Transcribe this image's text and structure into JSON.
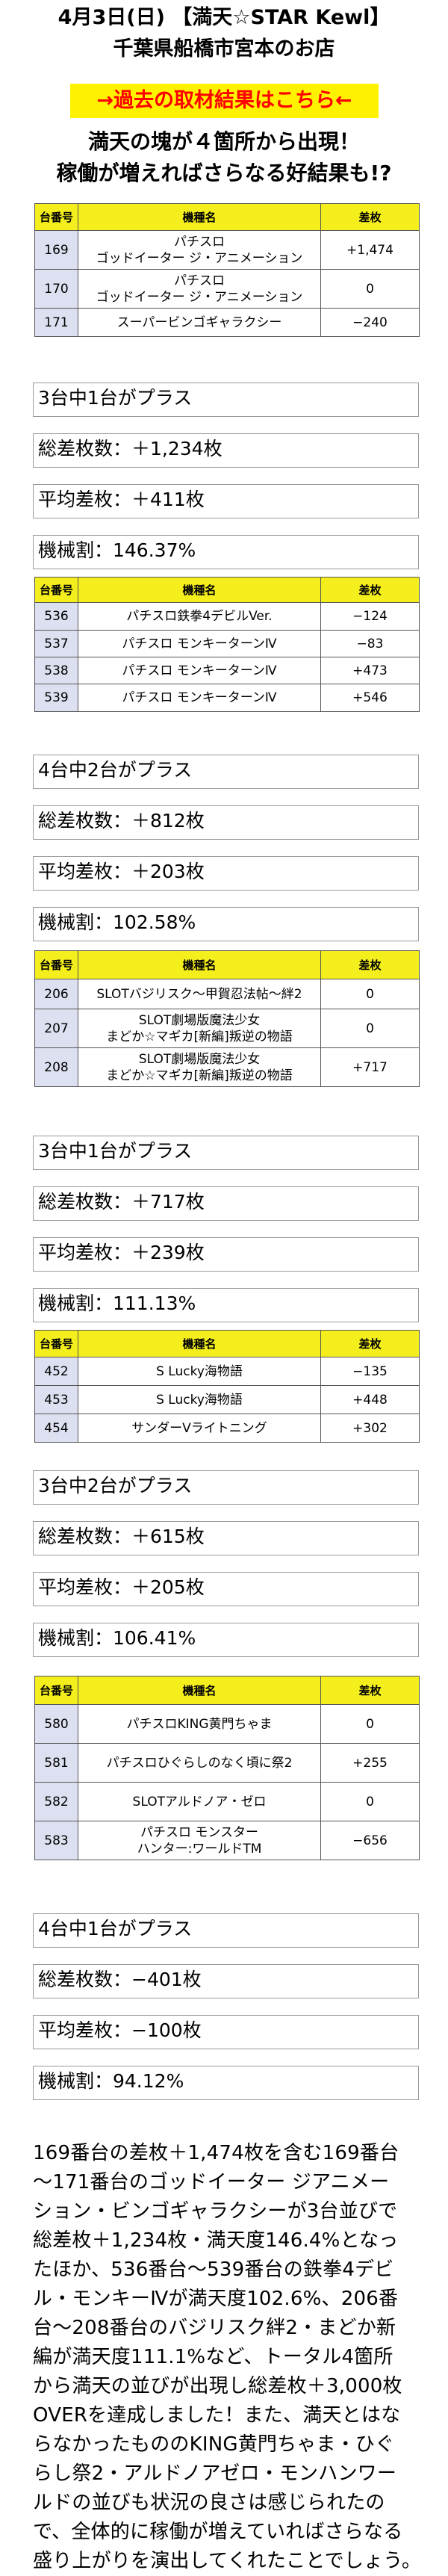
{
  "header": {
    "line1": "4月3日(日) 【満天☆STAR Kewl】",
    "line2": "千葉県船橋市宮本のお店"
  },
  "link_banner": "→過去の取材結果はこちら←",
  "lead": {
    "line1": "満天の塊が４箇所から出現！",
    "line2": "稼働が増えればさらなる好結果も!?"
  },
  "table_headers": {
    "num": "台番号",
    "name": "機種名",
    "diff": "差枚"
  },
  "sections": [
    {
      "rows": [
        {
          "num": "169",
          "name": [
            "パチスロ",
            "ゴッドイーター ジ・アニメーション"
          ],
          "diff": "+1,474"
        },
        {
          "num": "170",
          "name": [
            "パチスロ",
            "ゴッドイーター ジ・アニメーション"
          ],
          "diff": "0"
        },
        {
          "num": "171",
          "name": [
            "スーパービンゴギャラクシー"
          ],
          "diff": "−240"
        }
      ],
      "summary": [
        "3台中1台がプラス",
        "総差枚数：＋1,234枚",
        "平均差枚：＋411枚",
        "機械割：146.37%"
      ]
    },
    {
      "rows": [
        {
          "num": "536",
          "name": [
            "パチスロ鉄拳4デビルVer."
          ],
          "diff": "−124"
        },
        {
          "num": "537",
          "name": [
            "パチスロ モンキーターンⅣ"
          ],
          "diff": "−83"
        },
        {
          "num": "538",
          "name": [
            "パチスロ モンキーターンⅣ"
          ],
          "diff": "+473"
        },
        {
          "num": "539",
          "name": [
            "パチスロ モンキーターンⅣ"
          ],
          "diff": "+546"
        }
      ],
      "summary": [
        "4台中2台がプラス",
        "総差枚数：＋812枚",
        "平均差枚：＋203枚",
        "機械割：102.58%"
      ]
    },
    {
      "rows": [
        {
          "num": "206",
          "name": [
            "SLOTバジリスク～甲賀忍法帖～絆2"
          ],
          "diff": "0"
        },
        {
          "num": "207",
          "name": [
            "SLOT劇場版魔法少女",
            "まどか☆マギカ[新編]叛逆の物語"
          ],
          "diff": "0"
        },
        {
          "num": "208",
          "name": [
            "SLOT劇場版魔法少女",
            "まどか☆マギカ[新編]叛逆の物語"
          ],
          "diff": "+717"
        }
      ],
      "summary": [
        "3台中1台がプラス",
        "総差枚数：＋717枚",
        "平均差枚：＋239枚",
        "機械割：111.13%"
      ]
    },
    {
      "rows": [
        {
          "num": "452",
          "name": [
            "S Lucky海物語"
          ],
          "diff": "−135"
        },
        {
          "num": "453",
          "name": [
            "S Lucky海物語"
          ],
          "diff": "+448"
        },
        {
          "num": "454",
          "name": [
            "サンダーVライトニング"
          ],
          "diff": "+302"
        }
      ],
      "summary": [
        "3台中2台がプラス",
        "総差枚数：＋615枚",
        "平均差枚：＋205枚",
        "機械割：106.41%"
      ]
    },
    {
      "rows": [
        {
          "num": "580",
          "name": [
            "パチスロKING黄門ちゃま"
          ],
          "diff": "0"
        },
        {
          "num": "581",
          "name": [
            "パチスロひぐらしのなく頃に祭2"
          ],
          "diff": "+255"
        },
        {
          "num": "582",
          "name": [
            "SLOTアルドノア・ゼロ"
          ],
          "diff": "0"
        },
        {
          "num": "583",
          "name": [
            "パチスロ モンスター",
            "ハンター:ワールドTM"
          ],
          "diff": "−656"
        }
      ],
      "summary": [
        "4台中1台がプラス",
        "総差枚数：−401枚",
        "平均差枚：−100枚",
        "機械割：94.12%"
      ]
    }
  ],
  "paragraph": [
    "169番台の差枚＋1,474枚を含む169番台",
    "～171番台のゴッドイーター ジアニメー",
    "ション・ビンゴギャラクシーが3台並びで",
    "総差枚＋1,234枚・満天度146.4%となっ",
    "たほか、536番台～539番台の鉄拳4デビ",
    "ル・モンキーⅣが満天度102.6%、206番",
    "台～208番台のバジリスク絆2・まどか新",
    "編が満天度111.1%など、トータル4箇所",
    "から満天の並びが出現し総差枚＋3,000枚",
    "OVERを達成しました！また、満天とはな",
    "らなかったもののKING黄門ちゃま・ひぐ",
    "らし祭2・アルドノアゼロ・モンハンワー",
    "ルドの並びも状況の良さは感じられたの",
    "で、全体的に稼働が増えていればさらなる",
    "盛り上がりを演出してくれたことでしょう。"
  ]
}
